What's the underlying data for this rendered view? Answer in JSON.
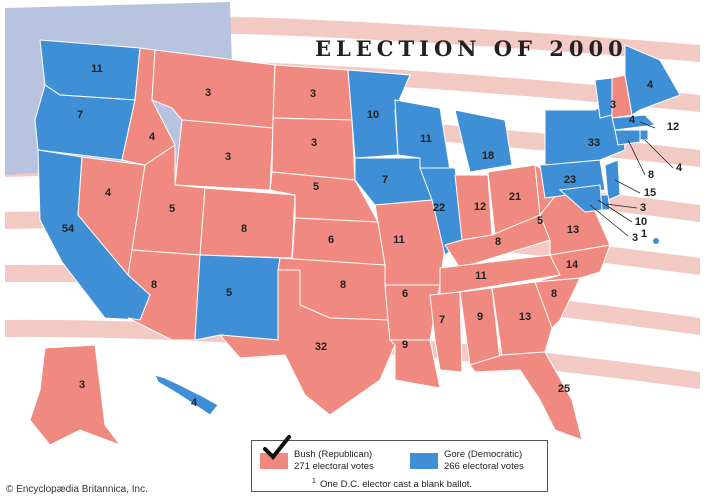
{
  "title": "ELECTION OF 2000",
  "colors": {
    "republican": "#f08a80",
    "democratic": "#3f8fd6",
    "flag_stripe": "#f3c9c3",
    "flag_canton": "#b8c3e0",
    "border": "#ffffff"
  },
  "legend": {
    "bush_name": "Bush (Republican)",
    "bush_votes": "271 electoral votes",
    "gore_name": "Gore (Democratic)",
    "gore_votes": "266 electoral votes",
    "footnote_mark": "1",
    "footnote_text": "One D.C. elector cast a blank ballot.",
    "winner_marker": "checkmark-icon"
  },
  "credit": "© Encyclopædia Britannica, Inc.",
  "states": {
    "WA": {
      "ev": "11",
      "party": "D"
    },
    "OR": {
      "ev": "7",
      "party": "D"
    },
    "CA": {
      "ev": "54",
      "party": "D"
    },
    "NV": {
      "ev": "4",
      "party": "R"
    },
    "ID": {
      "ev": "4",
      "party": "R"
    },
    "MT": {
      "ev": "3",
      "party": "R"
    },
    "WY": {
      "ev": "3",
      "party": "R"
    },
    "UT": {
      "ev": "5",
      "party": "R"
    },
    "AZ": {
      "ev": "8",
      "party": "R"
    },
    "CO": {
      "ev": "8",
      "party": "R"
    },
    "NM": {
      "ev": "5",
      "party": "D"
    },
    "ND": {
      "ev": "3",
      "party": "R"
    },
    "SD": {
      "ev": "3",
      "party": "R"
    },
    "NE": {
      "ev": "5",
      "party": "R"
    },
    "KS": {
      "ev": "6",
      "party": "R"
    },
    "OK": {
      "ev": "8",
      "party": "R"
    },
    "TX": {
      "ev": "32",
      "party": "R"
    },
    "MN": {
      "ev": "10",
      "party": "D"
    },
    "IA": {
      "ev": "7",
      "party": "D"
    },
    "MO": {
      "ev": "11",
      "party": "R"
    },
    "AR": {
      "ev": "6",
      "party": "R"
    },
    "LA": {
      "ev": "9",
      "party": "R"
    },
    "WI": {
      "ev": "11",
      "party": "D"
    },
    "IL": {
      "ev": "22",
      "party": "D"
    },
    "MI": {
      "ev": "18",
      "party": "D"
    },
    "IN": {
      "ev": "12",
      "party": "R"
    },
    "OH": {
      "ev": "21",
      "party": "R"
    },
    "KY": {
      "ev": "8",
      "party": "R"
    },
    "TN": {
      "ev": "11",
      "party": "R"
    },
    "MS": {
      "ev": "7",
      "party": "R"
    },
    "AL": {
      "ev": "9",
      "party": "R"
    },
    "GA": {
      "ev": "13",
      "party": "R"
    },
    "FL": {
      "ev": "25",
      "party": "R"
    },
    "SC": {
      "ev": "8",
      "party": "R"
    },
    "NC": {
      "ev": "14",
      "party": "R"
    },
    "VA": {
      "ev": "13",
      "party": "R"
    },
    "WV": {
      "ev": "5",
      "party": "R"
    },
    "PA": {
      "ev": "23",
      "party": "D"
    },
    "NY": {
      "ev": "33",
      "party": "D"
    },
    "VT": {
      "ev": "3",
      "party": "D"
    },
    "NH": {
      "ev": "4",
      "party": "R"
    },
    "ME": {
      "ev": "4",
      "party": "D"
    },
    "MA": {
      "ev": "12",
      "party": "D"
    },
    "RI": {
      "ev": "4",
      "party": "D"
    },
    "CT": {
      "ev": "8",
      "party": "D"
    },
    "NJ": {
      "ev": "15",
      "party": "D"
    },
    "DE": {
      "ev": "3",
      "party": "D"
    },
    "MD": {
      "ev": "10",
      "party": "D"
    },
    "DC": {
      "ev": "3",
      "party": "D",
      "footnote": "1"
    },
    "AK": {
      "ev": "3",
      "party": "R"
    },
    "HI": {
      "ev": "4",
      "party": "D"
    }
  }
}
